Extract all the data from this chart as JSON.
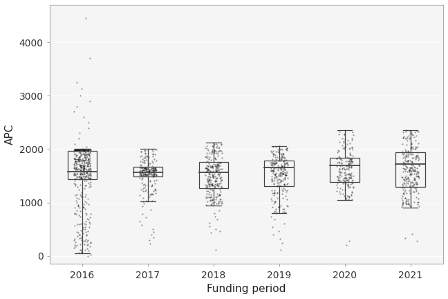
{
  "years": [
    2016,
    2017,
    2018,
    2019,
    2020,
    2021
  ],
  "boxes": {
    "2016": {
      "q1": 1430,
      "median": 1580,
      "q3": 1970,
      "whisker_low": 50,
      "whisker_high": 2000,
      "outliers": [
        4450,
        3700,
        3250,
        3130,
        3000,
        2900,
        2800,
        2700,
        2600,
        2500,
        2400,
        2300,
        2200,
        2100,
        2050
      ],
      "dense_low": [
        0,
        30,
        60,
        80,
        100,
        120,
        140,
        160,
        180,
        200,
        220,
        240,
        260,
        280,
        300,
        320,
        340,
        360,
        380,
        400,
        420,
        450,
        480,
        510,
        540,
        570,
        600,
        640,
        680,
        720,
        760,
        800,
        840,
        880,
        920,
        950
      ],
      "n_main": 400
    },
    "2017": {
      "q1": 1490,
      "median": 1565,
      "q3": 1665,
      "whisker_low": 1020,
      "whisker_high": 2010,
      "outliers": [
        230,
        300,
        350,
        400,
        450,
        510,
        580,
        650,
        720,
        790,
        860,
        930,
        980
      ],
      "dense_low": [],
      "n_main": 200
    },
    "2018": {
      "q1": 1270,
      "median": 1560,
      "q3": 1760,
      "whisker_low": 950,
      "whisker_high": 2120,
      "outliers": [
        110,
        440,
        470,
        510,
        560,
        620,
        680,
        740,
        800,
        850
      ],
      "dense_low": [],
      "n_main": 250
    },
    "2019": {
      "q1": 1310,
      "median": 1655,
      "q3": 1790,
      "whisker_low": 800,
      "whisker_high": 2060,
      "outliers": [
        110,
        250,
        320,
        400,
        470,
        540,
        610,
        680,
        740
      ],
      "dense_low": [],
      "n_main": 220
    },
    "2020": {
      "q1": 1380,
      "median": 1700,
      "q3": 1840,
      "whisker_low": 1050,
      "whisker_high": 2350,
      "outliers": [
        200,
        280
      ],
      "dense_low": [],
      "n_main": 180
    },
    "2021": {
      "q1": 1290,
      "median": 1725,
      "q3": 1940,
      "whisker_low": 900,
      "whisker_high": 2360,
      "outliers": [
        280,
        340,
        410
      ],
      "dense_low": [],
      "n_main": 250
    }
  },
  "xlabel": "Funding period",
  "ylabel": "APC",
  "ylim": [
    -150,
    4700
  ],
  "yticks": [
    0,
    1000,
    2000,
    3000,
    4000
  ],
  "background_color": "#ffffff",
  "panel_color": "#f5f5f5",
  "grid_color": "#ffffff",
  "box_color": "#444444",
  "median_color": "#444444",
  "point_color": "#000000",
  "point_alpha": 0.4,
  "point_size": 2.5,
  "box_width": 0.45,
  "label_fontsize": 11,
  "tick_fontsize": 10
}
